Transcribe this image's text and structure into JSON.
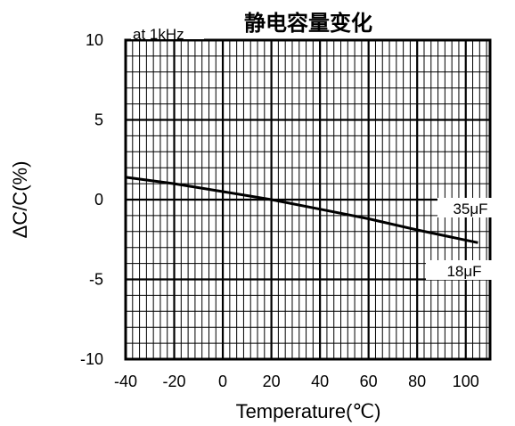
{
  "chart_data": {
    "type": "line",
    "title": "静电容量变化",
    "condition": "at 1kHz",
    "xlabel": "Temperature(℃)",
    "ylabel": "ΔC/C(%)",
    "xlim": [
      -40,
      110
    ],
    "ylim": [
      -10,
      10
    ],
    "x_ticks": [
      -40,
      -20,
      0,
      20,
      40,
      60,
      80,
      100
    ],
    "y_ticks": [
      10,
      5,
      0,
      -5,
      -10
    ],
    "x_tick_labels": [
      "-40",
      "-20",
      "0",
      "20",
      "40",
      "60",
      "80",
      "100"
    ],
    "y_tick_labels": [
      "10",
      "5",
      "0",
      "-5",
      "-10"
    ],
    "grid": true,
    "series": [
      {
        "x": [
          -40,
          -20,
          0,
          20,
          40,
          60,
          80,
          105
        ],
        "y": [
          1.4,
          1.0,
          0.5,
          0.0,
          -0.6,
          -1.2,
          -1.9,
          -2.7
        ]
      }
    ],
    "annotations": [
      "35μF",
      "18μF"
    ]
  }
}
